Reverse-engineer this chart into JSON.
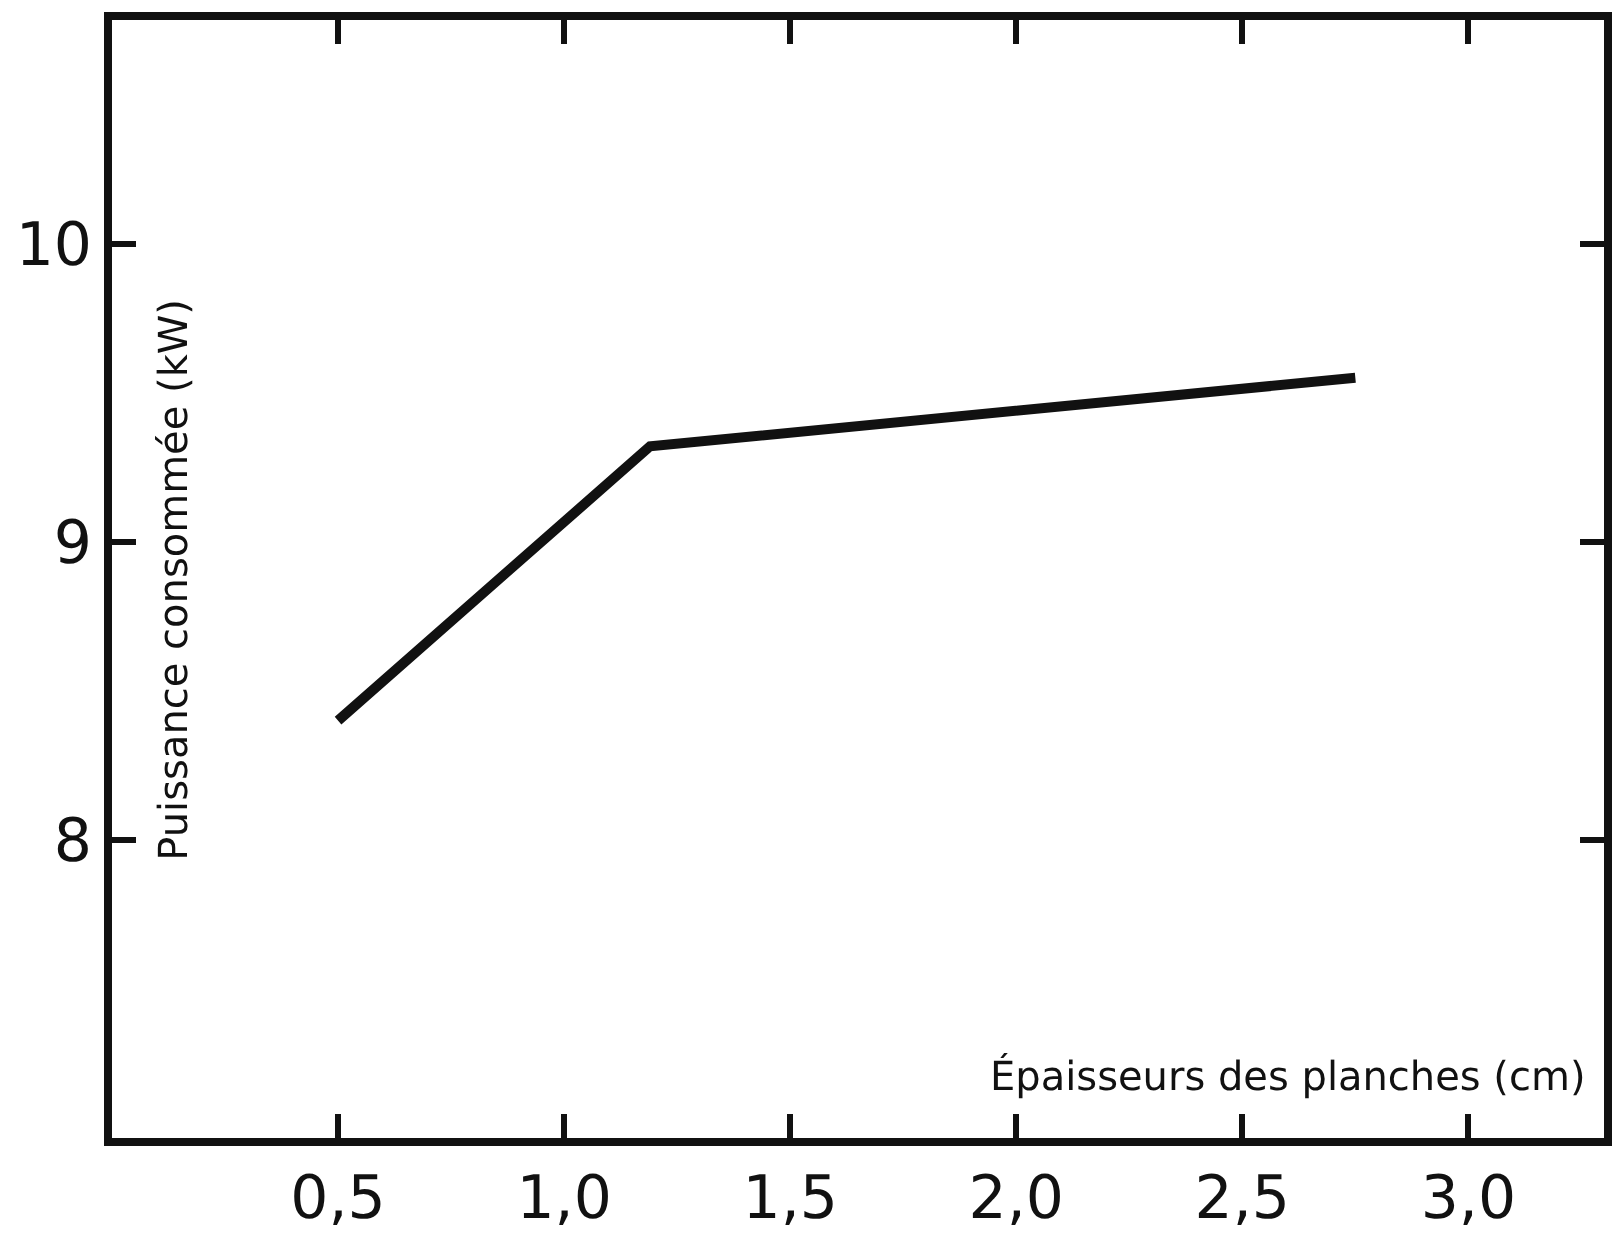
{
  "chart_data": {
    "type": "line",
    "xlabel": "Épaisseurs des planches (cm)",
    "ylabel": "Puissance consommée (kW)",
    "x": [
      0.5,
      1.19,
      2.75
    ],
    "series": [
      {
        "color": "#111111",
        "values": [
          8.4,
          9.32,
          9.55
        ]
      }
    ],
    "xlim": [
      0,
      3.3
    ],
    "ylim": [
      7,
      10.75
    ],
    "xticks": [
      {
        "value": 0.5,
        "label": "0,5"
      },
      {
        "value": 1.0,
        "label": "1,0"
      },
      {
        "value": 1.5,
        "label": "1,5"
      },
      {
        "value": 2.0,
        "label": "2,0"
      },
      {
        "value": 2.5,
        "label": "2,5"
      },
      {
        "value": 3.0,
        "label": "3,0"
      }
    ],
    "yticks": [
      8,
      9,
      10
    ],
    "marker": "none",
    "line_style": "solid"
  }
}
